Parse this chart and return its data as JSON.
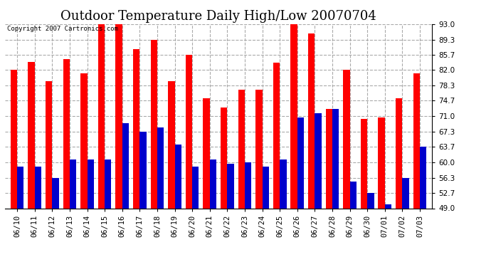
{
  "title": "Outdoor Temperature Daily High/Low 20070704",
  "copyright": "Copyright 2007 Cartronics.com",
  "dates": [
    "06/10",
    "06/11",
    "06/12",
    "06/13",
    "06/14",
    "06/15",
    "06/16",
    "06/17",
    "06/18",
    "06/19",
    "06/20",
    "06/21",
    "06/22",
    "06/23",
    "06/24",
    "06/25",
    "06/26",
    "06/27",
    "06/28",
    "06/29",
    "06/30",
    "07/01",
    "07/02",
    "07/03"
  ],
  "highs": [
    82.0,
    84.0,
    79.3,
    84.7,
    81.3,
    93.0,
    93.0,
    87.0,
    89.3,
    79.3,
    85.7,
    75.3,
    73.0,
    77.3,
    77.3,
    83.7,
    93.0,
    90.7,
    72.7,
    82.0,
    70.3,
    70.7,
    75.3,
    81.3
  ],
  "lows": [
    59.0,
    59.0,
    56.3,
    60.7,
    60.7,
    60.7,
    69.3,
    67.3,
    68.3,
    64.3,
    59.0,
    60.7,
    59.7,
    60.0,
    59.0,
    60.7,
    70.7,
    71.7,
    72.7,
    55.3,
    52.7,
    50.0,
    56.3,
    63.7
  ],
  "bar_width": 0.38,
  "high_color": "#FF0000",
  "low_color": "#0000CC",
  "ylim_min": 49.0,
  "ylim_max": 93.0,
  "yticks": [
    49.0,
    52.7,
    56.3,
    60.0,
    63.7,
    67.3,
    71.0,
    74.7,
    78.3,
    82.0,
    85.7,
    89.3,
    93.0
  ],
  "bg_color": "#FFFFFF",
  "grid_color": "#AAAAAA",
  "title_fontsize": 13,
  "tick_fontsize": 7.5,
  "copyright_fontsize": 6.5
}
